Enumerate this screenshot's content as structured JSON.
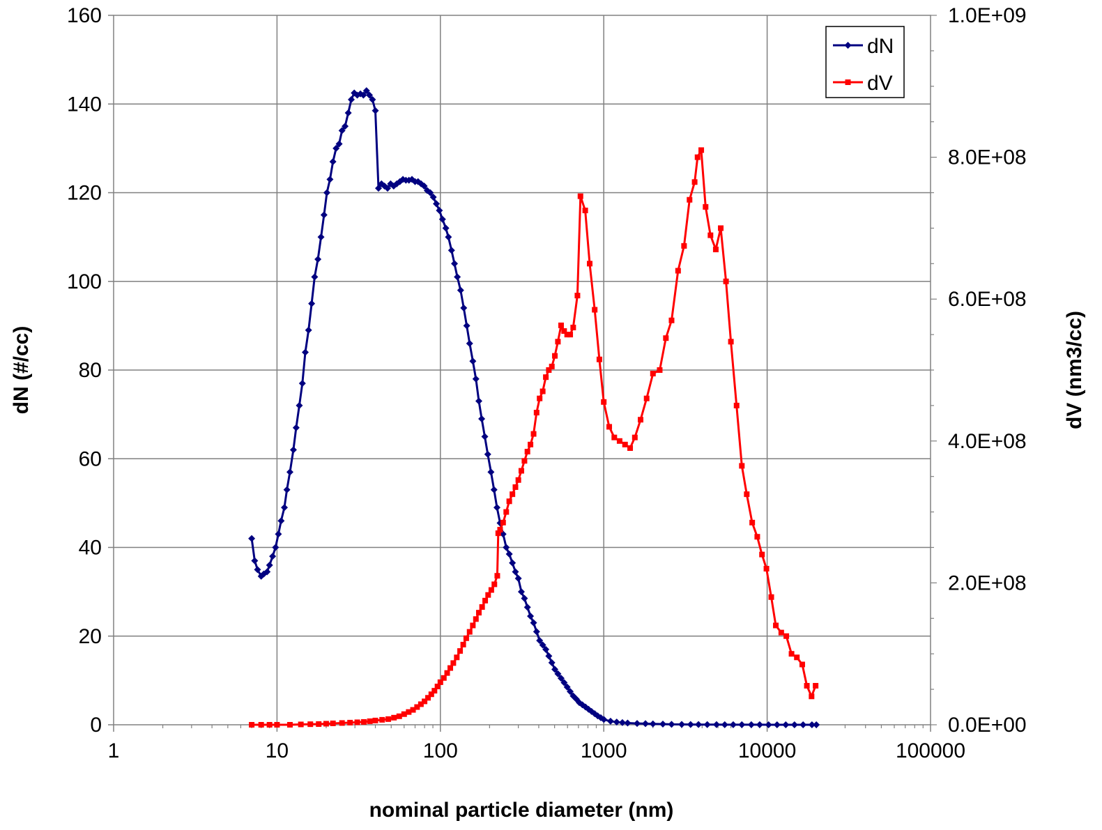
{
  "chart_data": {
    "type": "line",
    "x_scale": "log",
    "xlabel": "nominal particle diameter (nm)",
    "xlim": [
      1,
      100000
    ],
    "x_ticks": [
      "1",
      "10",
      "100",
      "1000",
      "10000",
      "100000"
    ],
    "ylabel_left": "dN (#/cc)",
    "ylim_left": [
      0,
      160
    ],
    "y_ticks_left": [
      "0",
      "20",
      "40",
      "60",
      "80",
      "100",
      "120",
      "140",
      "160"
    ],
    "ylabel_right": "dV (nm3/cc)",
    "ylim_right": [
      0,
      1000000000
    ],
    "y_ticks_right": [
      "0.0E+00",
      "2.0E+08",
      "4.0E+08",
      "6.0E+08",
      "8.0E+08",
      "1.0E+09"
    ],
    "grid": true,
    "legend_position": "top-right",
    "series": [
      {
        "name": "dN",
        "axis": "left",
        "color": "#000080",
        "marker": "diamond",
        "points": [
          [
            7.0,
            42
          ],
          [
            7.3,
            37
          ],
          [
            7.6,
            35
          ],
          [
            8.0,
            33.5
          ],
          [
            8.3,
            34
          ],
          [
            8.7,
            34.5
          ],
          [
            9.0,
            36
          ],
          [
            9.4,
            38
          ],
          [
            9.8,
            40
          ],
          [
            10.2,
            43
          ],
          [
            10.6,
            46
          ],
          [
            11.1,
            49
          ],
          [
            11.5,
            53
          ],
          [
            12.0,
            57
          ],
          [
            12.6,
            62
          ],
          [
            13.1,
            67
          ],
          [
            13.7,
            72
          ],
          [
            14.3,
            77
          ],
          [
            14.9,
            84
          ],
          [
            15.6,
            89
          ],
          [
            16.3,
            95
          ],
          [
            17.0,
            101
          ],
          [
            17.8,
            105
          ],
          [
            18.6,
            110
          ],
          [
            19.4,
            115
          ],
          [
            20.2,
            120
          ],
          [
            21.1,
            123
          ],
          [
            22.0,
            127
          ],
          [
            23.0,
            130
          ],
          [
            24.0,
            131
          ],
          [
            25.0,
            134
          ],
          [
            26.1,
            135
          ],
          [
            27.3,
            138
          ],
          [
            28.5,
            141
          ],
          [
            29.7,
            142.5
          ],
          [
            31.0,
            142
          ],
          [
            32.4,
            142.3
          ],
          [
            33.8,
            142
          ],
          [
            35.3,
            143
          ],
          [
            36.8,
            142
          ],
          [
            38.4,
            141
          ],
          [
            40.0,
            138.5
          ],
          [
            41.8,
            121
          ],
          [
            43.6,
            122
          ],
          [
            45.5,
            121.5
          ],
          [
            47.5,
            121
          ],
          [
            49.6,
            122
          ],
          [
            51.8,
            121.5
          ],
          [
            54.1,
            122
          ],
          [
            56.5,
            122.5
          ],
          [
            59.0,
            123
          ],
          [
            61.5,
            122.8
          ],
          [
            64.2,
            122.8
          ],
          [
            67.0,
            123
          ],
          [
            70.0,
            122.5
          ],
          [
            73.0,
            122.5
          ],
          [
            76.2,
            122
          ],
          [
            79.6,
            121.5
          ],
          [
            83.1,
            120.5
          ],
          [
            86.7,
            120
          ],
          [
            90.5,
            119
          ],
          [
            94.5,
            117.5
          ],
          [
            98.6,
            116
          ],
          [
            103,
            114
          ],
          [
            108,
            112
          ],
          [
            112,
            110
          ],
          [
            117,
            107
          ],
          [
            122,
            104
          ],
          [
            127,
            101
          ],
          [
            133,
            98
          ],
          [
            139,
            94
          ],
          [
            145,
            90
          ],
          [
            151,
            86
          ],
          [
            158,
            82
          ],
          [
            165,
            78
          ],
          [
            172,
            73
          ],
          [
            179,
            69
          ],
          [
            187,
            65
          ],
          [
            195,
            61
          ],
          [
            204,
            57
          ],
          [
            213,
            53
          ],
          [
            222,
            49
          ],
          [
            232,
            45.5
          ],
          [
            242,
            43
          ],
          [
            253,
            40
          ],
          [
            264,
            38.5
          ],
          [
            276,
            36.5
          ],
          [
            288,
            34.5
          ],
          [
            300,
            33
          ],
          [
            313,
            30
          ],
          [
            327,
            28.5
          ],
          [
            341,
            26.5
          ],
          [
            356,
            24.5
          ],
          [
            372,
            23
          ],
          [
            388,
            21
          ],
          [
            405,
            19
          ],
          [
            423,
            18
          ],
          [
            442,
            17
          ],
          [
            461,
            15.5
          ],
          [
            481,
            14
          ],
          [
            502,
            12.5
          ],
          [
            524,
            11.5
          ],
          [
            548,
            10.5
          ],
          [
            572,
            9.5
          ],
          [
            597,
            8.5
          ],
          [
            623,
            7.5
          ],
          [
            650,
            6.5
          ],
          [
            679,
            5.8
          ],
          [
            709,
            5
          ],
          [
            740,
            4.5
          ],
          [
            773,
            4
          ],
          [
            807,
            3.5
          ],
          [
            842,
            3
          ],
          [
            880,
            2.5
          ],
          [
            918,
            2
          ],
          [
            959,
            1.6
          ],
          [
            1001,
            1.2
          ],
          [
            1100,
            0.8
          ],
          [
            1200,
            0.6
          ],
          [
            1300,
            0.5
          ],
          [
            1400,
            0.4
          ],
          [
            1600,
            0.3
          ],
          [
            1800,
            0.25
          ],
          [
            2000,
            0.2
          ],
          [
            2300,
            0.15
          ],
          [
            2600,
            0.1
          ],
          [
            3000,
            0.08
          ],
          [
            3400,
            0.06
          ],
          [
            3800,
            0.05
          ],
          [
            4300,
            0.04
          ],
          [
            4900,
            0.03
          ],
          [
            5500,
            0.02
          ],
          [
            6200,
            0.02
          ],
          [
            7000,
            0.01
          ],
          [
            8000,
            0.01
          ],
          [
            9000,
            0.01
          ],
          [
            10200,
            0
          ],
          [
            11500,
            0
          ],
          [
            13000,
            0
          ],
          [
            14700,
            0
          ],
          [
            16600,
            0
          ],
          [
            18800,
            0
          ],
          [
            20000,
            0
          ]
        ]
      },
      {
        "name": "dV",
        "axis": "right",
        "color": "#ff0000",
        "marker": "square",
        "points": [
          [
            7.0,
            0
          ],
          [
            8.0,
            0
          ],
          [
            9.0,
            0
          ],
          [
            10.0,
            0
          ],
          [
            12.0,
            0
          ],
          [
            14.0,
            500000
          ],
          [
            16.0,
            800000
          ],
          [
            18.0,
            1000000
          ],
          [
            20.0,
            1500000
          ],
          [
            22.0,
            2000000
          ],
          [
            25.0,
            2500000
          ],
          [
            28.0,
            3000000
          ],
          [
            31.0,
            3500000
          ],
          [
            34.0,
            4000000
          ],
          [
            37.0,
            5000000
          ],
          [
            40.0,
            6000000
          ],
          [
            44.0,
            7000000
          ],
          [
            48.0,
            8000000
          ],
          [
            52.0,
            10000000
          ],
          [
            56.0,
            12000000
          ],
          [
            60.0,
            15000000
          ],
          [
            64.0,
            18000000
          ],
          [
            68.0,
            21000000
          ],
          [
            72.0,
            25000000
          ],
          [
            76.0,
            29000000
          ],
          [
            80.0,
            33000000
          ],
          [
            84.0,
            38000000
          ],
          [
            88.0,
            43000000
          ],
          [
            92.0,
            48000000
          ],
          [
            96.0,
            54000000
          ],
          [
            100,
            60000000
          ],
          [
            105,
            66000000
          ],
          [
            110,
            73000000
          ],
          [
            115,
            80000000
          ],
          [
            120,
            87000000
          ],
          [
            126,
            95000000
          ],
          [
            132,
            104000000
          ],
          [
            138,
            113000000
          ],
          [
            144,
            122000000
          ],
          [
            151,
            131000000
          ],
          [
            158,
            140000000
          ],
          [
            165,
            149000000
          ],
          [
            172,
            158000000
          ],
          [
            180,
            166000000
          ],
          [
            188,
            175000000
          ],
          [
            196,
            183000000
          ],
          [
            205,
            190000000
          ],
          [
            214,
            198000000
          ],
          [
            223,
            210000000
          ],
          [
            226,
            270000000
          ],
          [
            232,
            275000000
          ],
          [
            242,
            285000000
          ],
          [
            253,
            300000000
          ],
          [
            264,
            315000000
          ],
          [
            276,
            325000000
          ],
          [
            288,
            335000000
          ],
          [
            300,
            345000000
          ],
          [
            313,
            358000000
          ],
          [
            327,
            372000000
          ],
          [
            341,
            385000000
          ],
          [
            356,
            395000000
          ],
          [
            372,
            410000000
          ],
          [
            388,
            440000000
          ],
          [
            405,
            460000000
          ],
          [
            423,
            470000000
          ],
          [
            442,
            490000000
          ],
          [
            461,
            500000000
          ],
          [
            481,
            505000000
          ],
          [
            502,
            520000000
          ],
          [
            524,
            540000000
          ],
          [
            548,
            563000000
          ],
          [
            572,
            555000000
          ],
          [
            597,
            550000000
          ],
          [
            623,
            550000000
          ],
          [
            650,
            560000000
          ],
          [
            690,
            605000000
          ],
          [
            720,
            745000000
          ],
          [
            770,
            725000000
          ],
          [
            820,
            650000000
          ],
          [
            880,
            585000000
          ],
          [
            940,
            515000000
          ],
          [
            1000,
            455000000
          ],
          [
            1080,
            420000000
          ],
          [
            1160,
            405000000
          ],
          [
            1250,
            400000000
          ],
          [
            1350,
            395000000
          ],
          [
            1450,
            390000000
          ],
          [
            1550,
            405000000
          ],
          [
            1680,
            430000000
          ],
          [
            1830,
            460000000
          ],
          [
            2000,
            495000000
          ],
          [
            2200,
            500000000
          ],
          [
            2400,
            545000000
          ],
          [
            2600,
            570000000
          ],
          [
            2850,
            640000000
          ],
          [
            3100,
            675000000
          ],
          [
            3350,
            740000000
          ],
          [
            3600,
            765000000
          ],
          [
            3750,
            800000000
          ],
          [
            3950,
            810000000
          ],
          [
            4200,
            730000000
          ],
          [
            4500,
            690000000
          ],
          [
            4850,
            670000000
          ],
          [
            5200,
            700000000
          ],
          [
            5600,
            625000000
          ],
          [
            6000,
            540000000
          ],
          [
            6500,
            450000000
          ],
          [
            7000,
            365000000
          ],
          [
            7500,
            325000000
          ],
          [
            8100,
            285000000
          ],
          [
            8700,
            265000000
          ],
          [
            9300,
            240000000
          ],
          [
            9900,
            220000000
          ],
          [
            10600,
            180000000
          ],
          [
            11300,
            140000000
          ],
          [
            12200,
            130000000
          ],
          [
            13100,
            125000000
          ],
          [
            14100,
            100000000
          ],
          [
            15200,
            95000000
          ],
          [
            16400,
            85000000
          ],
          [
            17500,
            55000000
          ],
          [
            18700,
            40000000
          ],
          [
            19800,
            55000000
          ]
        ]
      }
    ]
  }
}
